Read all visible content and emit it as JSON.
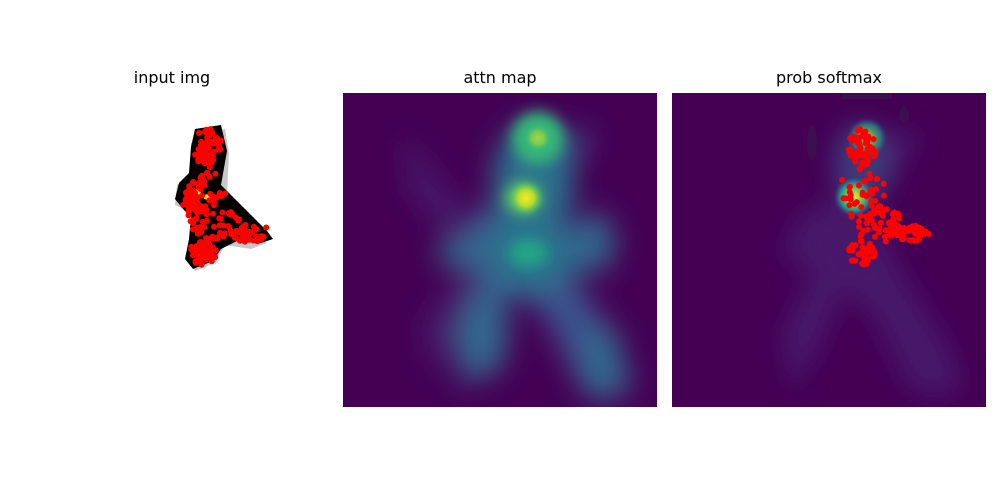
{
  "figure": {
    "panels": [
      {
        "title": "input img"
      },
      {
        "title": "attn map"
      },
      {
        "title": "prob softmax"
      }
    ]
  },
  "colors": {
    "background_low": "#440154",
    "mid": "#2a788e",
    "high": "#7ad151",
    "peak": "#fde725",
    "points": "#ff0000",
    "silhouette": "#000000"
  }
}
